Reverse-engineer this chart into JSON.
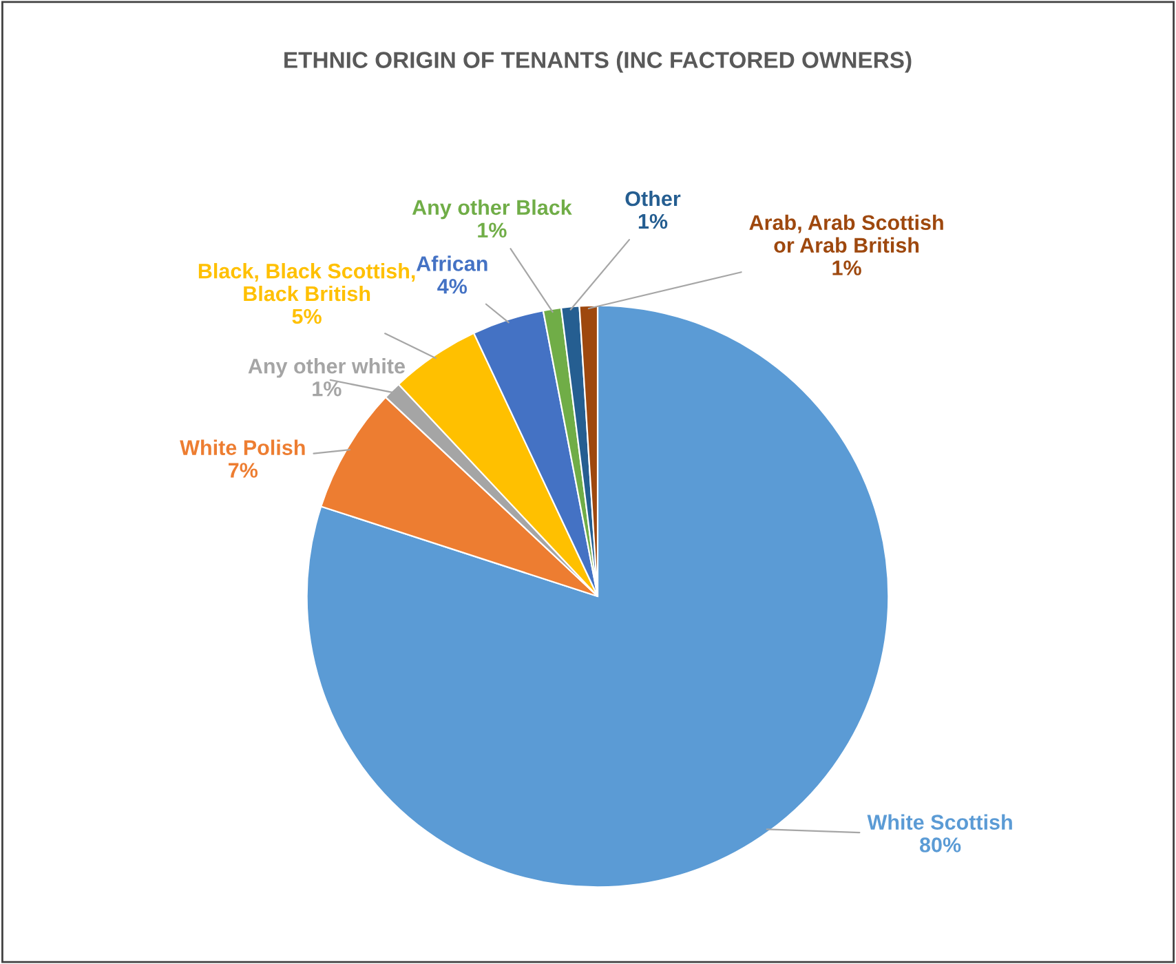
{
  "chart_data": {
    "type": "pie",
    "title": "ETHNIC ORIGIN OF TENANTS (INC FACTORED OWNERS)",
    "categories": [
      "White Scottish",
      "White Polish",
      "Any other white",
      "Black, Black Scottish,\nBlack British",
      "African",
      "Any other Black",
      "Other",
      "Arab, Arab Scottish\nor Arab British"
    ],
    "values": [
      80,
      7,
      1,
      5,
      4,
      1,
      1,
      1
    ],
    "value_labels": [
      "80%",
      "7%",
      "1%",
      "5%",
      "4%",
      "1%",
      "1%",
      "1%"
    ],
    "colors": [
      "#5b9bd5",
      "#ed7d31",
      "#a5a5a5",
      "#ffc000",
      "#4472c4",
      "#70ad47",
      "#255e91",
      "#9e480e"
    ]
  }
}
